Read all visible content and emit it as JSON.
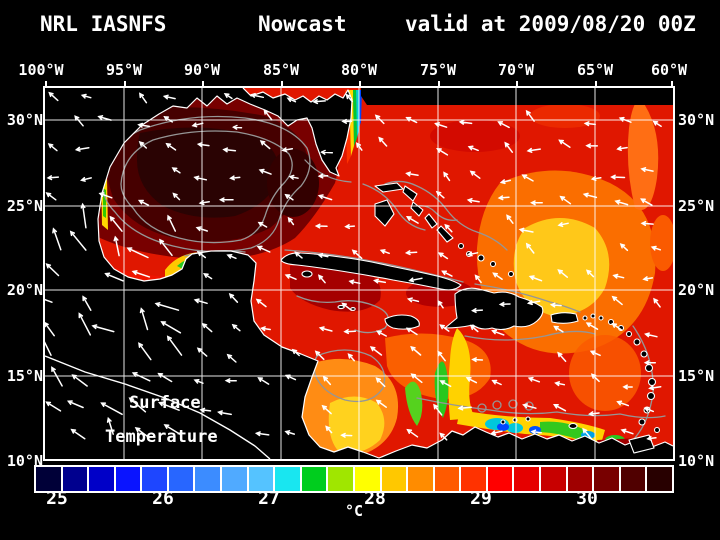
{
  "title": {
    "program": "NRL IASNFS",
    "product": "Nowcast",
    "valid": "valid at 2009/08/20 00Z"
  },
  "axes": {
    "lon_labels": [
      "100°W",
      "95°W",
      "90°W",
      "85°W",
      "80°W",
      "75°W",
      "70°W",
      "65°W",
      "60°W"
    ],
    "lat_labels": [
      "30°N",
      "25°N",
      "20°N",
      "15°N",
      "10°N"
    ]
  },
  "overlay": {
    "line1": "Surface",
    "line2": "Temperature"
  },
  "colorbar": {
    "tick_labels": [
      "25",
      "26",
      "27",
      "28",
      "29",
      "30"
    ],
    "unit": "°C",
    "segment_colors": [
      "#000038",
      "#00008e",
      "#0000c8",
      "#0a14ff",
      "#1e46ff",
      "#2866ff",
      "#3c8cff",
      "#50aaff",
      "#55c3ff",
      "#19e6f0",
      "#00cd1e",
      "#a0e600",
      "#ffff00",
      "#ffc800",
      "#ff8c00",
      "#ff5a00",
      "#ff3200",
      "#ff0000",
      "#e60000",
      "#c80000",
      "#a00000",
      "#780000",
      "#500000",
      "#280000"
    ]
  },
  "figure_colors": {
    "background": "#000000",
    "gridline": "#ffffff",
    "contour": "#969696",
    "ocean_base": "#e01700"
  }
}
